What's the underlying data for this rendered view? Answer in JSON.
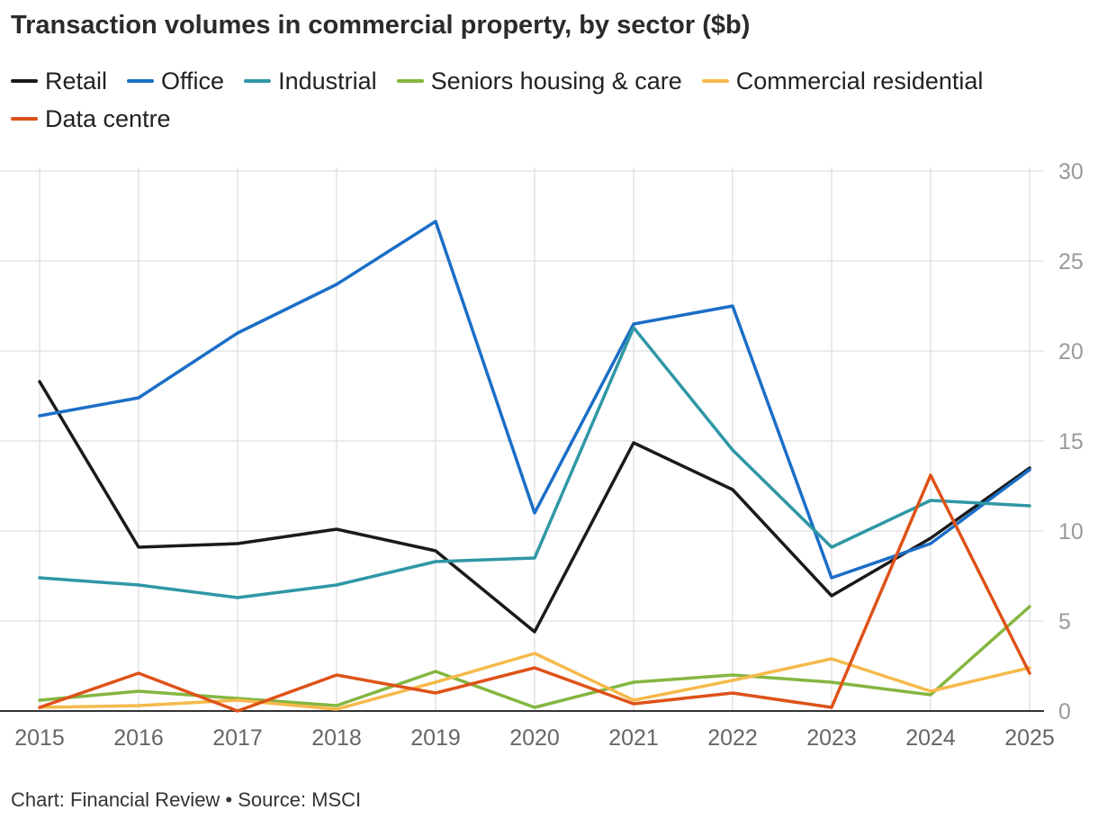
{
  "title": "Transaction volumes in commercial property, by sector ($b)",
  "footer": "Chart: Financial Review • Source: MSCI",
  "chart_data": {
    "type": "line",
    "title": "Transaction volumes in commercial property, by sector ($b)",
    "xlabel": "",
    "ylabel": "",
    "x": [
      2015,
      2016,
      2017,
      2018,
      2019,
      2020,
      2021,
      2022,
      2023,
      2024,
      2025
    ],
    "ylim": [
      0,
      30
    ],
    "yticks": [
      0,
      5,
      10,
      15,
      20,
      25,
      30
    ],
    "y_axis_side": "right",
    "grid": true,
    "legend_position": "top-left",
    "series": [
      {
        "name": "Retail",
        "color": "#1a1a1a",
        "values": [
          18.3,
          9.1,
          9.3,
          10.1,
          8.9,
          4.4,
          14.9,
          12.3,
          6.4,
          9.6,
          13.5
        ]
      },
      {
        "name": "Office",
        "color": "#1b6ec6",
        "values": [
          16.4,
          17.4,
          21.0,
          23.7,
          27.2,
          11.0,
          21.5,
          22.5,
          7.4,
          9.3,
          13.4
        ]
      },
      {
        "name": "Industrial",
        "color": "#2f97a6",
        "values": [
          7.4,
          7.0,
          6.3,
          7.0,
          8.3,
          8.5,
          21.3,
          14.5,
          9.1,
          11.7,
          11.4
        ]
      },
      {
        "name": "Seniors housing & care",
        "color": "#84b640",
        "values": [
          0.6,
          1.1,
          0.7,
          0.3,
          2.2,
          0.2,
          1.6,
          2.0,
          1.6,
          0.9,
          5.8
        ]
      },
      {
        "name": "Commercial residential",
        "color": "#f6b94b",
        "values": [
          0.2,
          0.3,
          0.6,
          0.1,
          1.6,
          3.2,
          0.6,
          1.7,
          2.9,
          1.1,
          2.4
        ]
      },
      {
        "name": "Data centre",
        "color": "#de5219",
        "values": [
          0.2,
          2.1,
          0.0,
          2.0,
          1.0,
          2.4,
          0.4,
          1.0,
          0.2,
          13.1,
          2.1
        ]
      }
    ]
  }
}
